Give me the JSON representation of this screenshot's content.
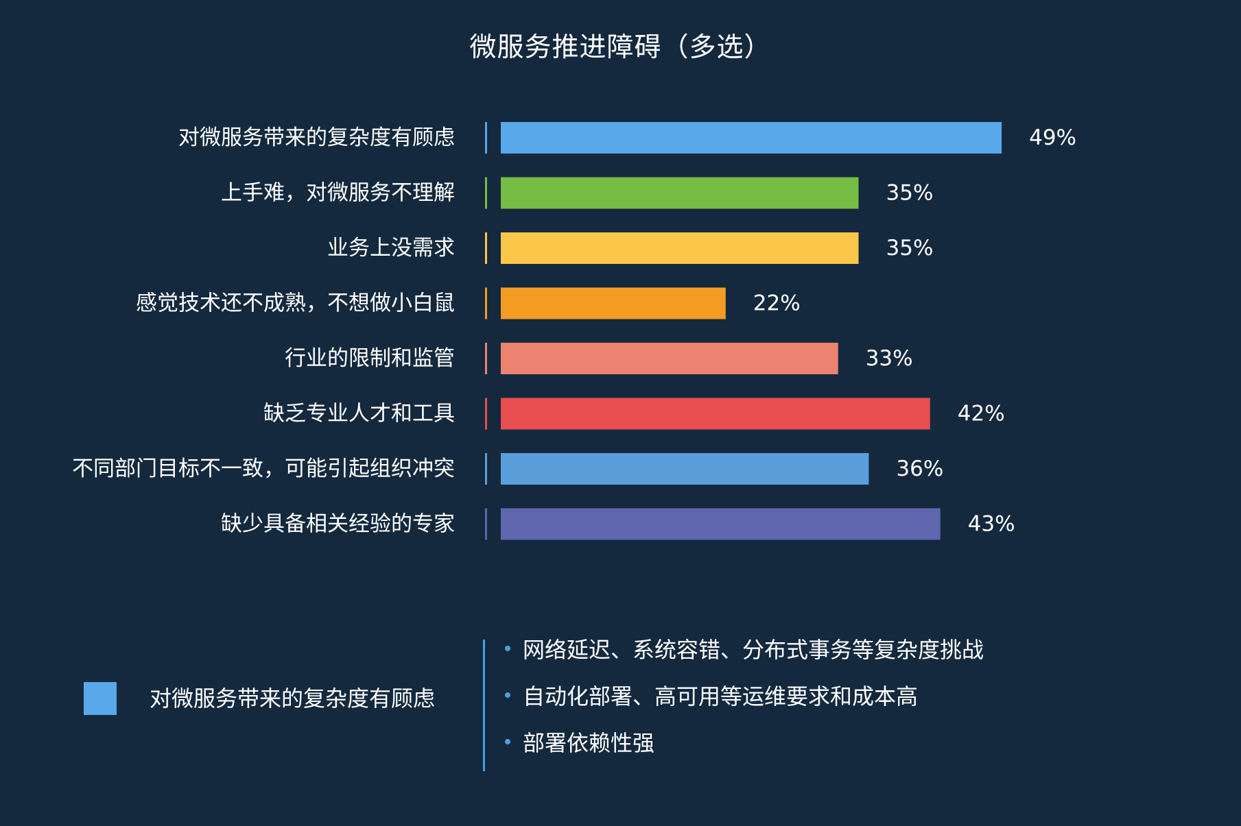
{
  "chart_data": {
    "type": "bar",
    "orientation": "horizontal",
    "title": "微服务推进障碍（多选）",
    "categories": [
      "对微服务带来的复杂度有顾虑",
      "上手难，对微服务不理解",
      "业务上没需求",
      "感觉技术还不成熟，不想做小白鼠",
      "行业的限制和监管",
      "缺乏专业人才和工具",
      "不同部门目标不一致，可能引起组织冲突",
      "缺少具备相关经验的专家"
    ],
    "values": [
      49,
      35,
      35,
      22,
      33,
      42,
      36,
      43
    ],
    "value_labels": [
      "49%",
      "35%",
      "35%",
      "22%",
      "33%",
      "42%",
      "36%",
      "43%"
    ],
    "colors": [
      "#58a8ea",
      "#76bd43",
      "#fbc748",
      "#f49c22",
      "#ec8370",
      "#e74e4d",
      "#5a9fda",
      "#6066ae"
    ],
    "unit": "%",
    "grid": false
  },
  "detail": {
    "legend_color": "#58a8ea",
    "legend_label": "对微服务带来的复杂度有顾虑",
    "items": [
      "网络延迟、系统容错、分布式事务等复杂度挑战",
      "自动化部署、高可用等运维要求和成本高",
      "部署依赖性强"
    ]
  }
}
